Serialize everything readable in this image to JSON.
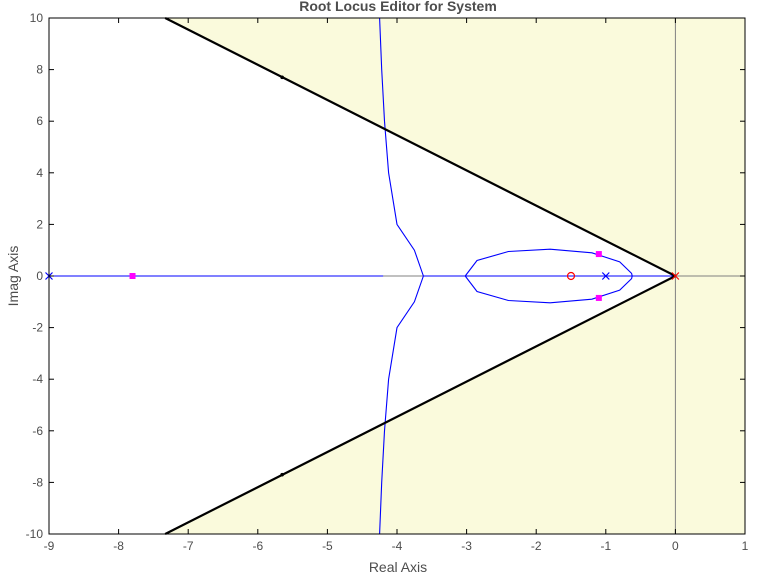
{
  "chart_data": {
    "type": "line",
    "title": "Root Locus Editor for System",
    "xlabel": "Real Axis",
    "ylabel": "Imag Axis",
    "xlim": [
      -9,
      1
    ],
    "ylim": [
      -10,
      10
    ],
    "xticks": [
      -9,
      -8,
      -7,
      -6,
      -5,
      -4,
      -3,
      -2,
      -1,
      0,
      1
    ],
    "yticks": [
      -10,
      -8,
      -6,
      -4,
      -2,
      0,
      2,
      4,
      6,
      8,
      10
    ],
    "grid": false,
    "legend": "none",
    "colors": {
      "locus": "#0000ff",
      "constraint": "#000000",
      "region": "#fafadc",
      "closed_loop_poles": "#ff00ff",
      "open_loop_poles": "#0000ff",
      "origin_marker": "#ff0000",
      "zero": "#ff0000",
      "axes_lines": "#808080"
    },
    "damping_constraint": {
      "upper": [
        [
          -7.33,
          10
        ],
        [
          0,
          0
        ]
      ],
      "lower": [
        [
          -7.33,
          -10
        ],
        [
          0,
          0
        ]
      ],
      "tick_marks": [
        [
          -5.65,
          7.7
        ],
        [
          -5.65,
          -7.7
        ]
      ]
    },
    "locus_branches": [
      [
        [
          -9,
          0
        ],
        [
          -4.2,
          0
        ]
      ],
      [
        [
          -4.25,
          10
        ],
        [
          -4.22,
          8
        ],
        [
          -4.18,
          6
        ],
        [
          -4.12,
          4
        ],
        [
          -4.0,
          2
        ],
        [
          -3.75,
          1
        ],
        [
          -3.62,
          0
        ]
      ],
      [
        [
          -4.25,
          -10
        ],
        [
          -4.22,
          -8
        ],
        [
          -4.18,
          -6
        ],
        [
          -4.12,
          -4
        ],
        [
          -4.0,
          -2
        ],
        [
          -3.75,
          -1
        ],
        [
          -3.62,
          0
        ]
      ],
      [
        [
          -3.62,
          0
        ],
        [
          0,
          0
        ]
      ],
      [
        [
          -3.02,
          0
        ],
        [
          -2.85,
          0.6
        ],
        [
          -2.4,
          0.95
        ],
        [
          -1.8,
          1.04
        ],
        [
          -1.2,
          0.9
        ],
        [
          -0.8,
          0.55
        ],
        [
          -0.63,
          0.1
        ],
        [
          -0.62,
          0
        ],
        [
          -0.63,
          -0.1
        ],
        [
          -0.8,
          -0.55
        ],
        [
          -1.2,
          -0.9
        ],
        [
          -1.8,
          -1.04
        ],
        [
          -2.4,
          -0.95
        ],
        [
          -2.85,
          -0.6
        ],
        [
          -3.02,
          0
        ]
      ]
    ],
    "open_loop_poles": [
      [
        -9,
        0
      ],
      [
        -1.0,
        0
      ],
      [
        0,
        0
      ]
    ],
    "open_loop_zeros": [
      [
        -1.5,
        0
      ]
    ],
    "closed_loop_poles": [
      [
        -7.8,
        0
      ],
      [
        -1.1,
        0.85
      ],
      [
        -1.1,
        -0.85
      ]
    ]
  }
}
